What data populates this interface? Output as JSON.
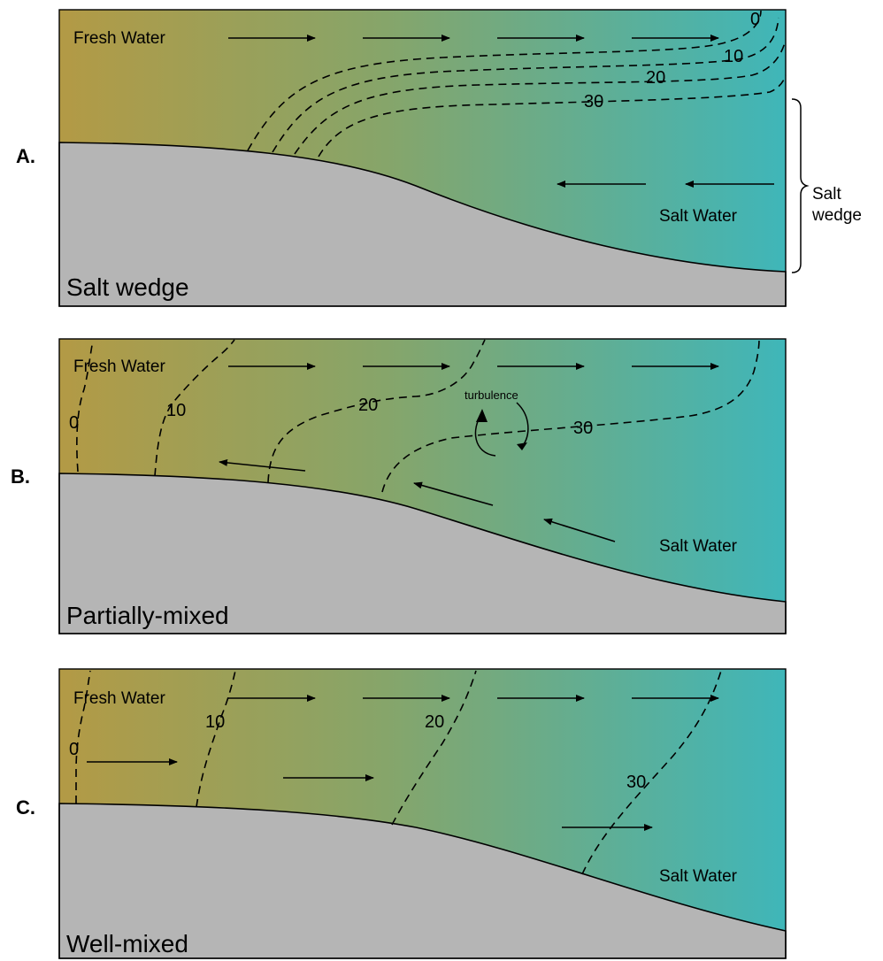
{
  "panels": [
    {
      "letter": "A.",
      "title": "Salt wedge",
      "fresh_label": "Fresh Water",
      "salt_label": "Salt Water",
      "isohalines": [
        "0",
        "10",
        "20",
        "30"
      ],
      "brace_label_line1": "Salt",
      "brace_label_line2": "wedge"
    },
    {
      "letter": "B.",
      "title": "Partially-mixed",
      "fresh_label": "Fresh Water",
      "salt_label": "Salt Water",
      "isohalines": [
        "0",
        "10",
        "20",
        "30"
      ],
      "turbulence_label": "turbulence"
    },
    {
      "letter": "C.",
      "title": "Well-mixed",
      "fresh_label": "Fresh Water",
      "salt_label": "Salt Water",
      "isohalines": [
        "0",
        "10",
        "20",
        "30"
      ]
    }
  ],
  "colors": {
    "fresh": "#b39a45",
    "mid": "#86a56a",
    "salt": "#3fb6b9",
    "bed": "#b5b5b5"
  }
}
